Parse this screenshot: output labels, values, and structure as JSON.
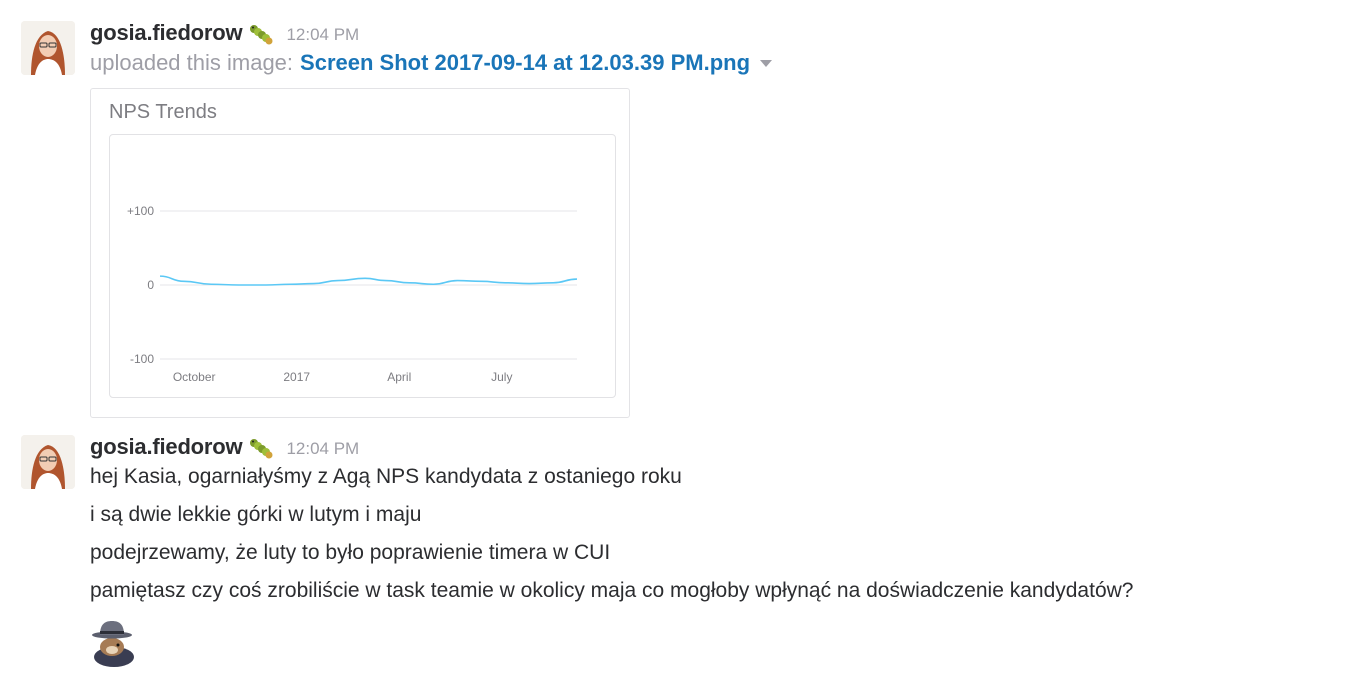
{
  "messages": [
    {
      "username": "gosia.fiedorow",
      "status_emoji": "caterpillar-emoji",
      "timestamp": "12:04 PM",
      "upload_prefix": "uploaded this image:",
      "file_name": "Screen Shot 2017-09-14 at 12.03.39 PM.png"
    },
    {
      "username": "gosia.fiedorow",
      "status_emoji": "caterpillar-emoji",
      "timestamp": "12:04 PM",
      "lines": [
        "hej Kasia, ogarniałyśmy z Agą NPS kandydata z ostaniego roku",
        "i są dwie lekkie górki w lutym i maju",
        "podejrzewamy, że luty to było poprawienie timera w CUI",
        "pamiętasz czy coś zrobiliście w task teamie w okolicy maja co mogłoby wpłynąć na doświadczenie kandydatów?"
      ],
      "sticker": "detective-squirrel-sticker"
    }
  ],
  "chart_data": {
    "type": "line",
    "title": "NPS Trends",
    "xlabel": "",
    "ylabel": "",
    "x_tick_labels": [
      "October",
      "2017",
      "April",
      "July"
    ],
    "y_tick_labels": [
      "+100",
      "0",
      "-100"
    ],
    "ylim": [
      -100,
      100
    ],
    "grid": true,
    "series": [
      {
        "color": "#5bc8f5",
        "x": [
          0,
          0.7,
          1.5,
          2.3,
          3.1,
          3.8,
          4.5,
          5.2,
          6.0,
          6.6,
          7.3,
          8.0,
          8.7,
          9.4,
          10.1,
          10.8,
          11.5,
          12.2
        ],
        "y": [
          12,
          5,
          1,
          0,
          0,
          1,
          2,
          6,
          9,
          6,
          3,
          1,
          6,
          5,
          3,
          2,
          3,
          8
        ]
      }
    ],
    "x_tick_positions": [
      1,
      4,
      7,
      10
    ],
    "xlim": [
      0,
      12.2
    ],
    "colors": {
      "line": "#5bc8f5",
      "grid": "#e6e6e8",
      "tick_text": "#7d7d82"
    }
  }
}
